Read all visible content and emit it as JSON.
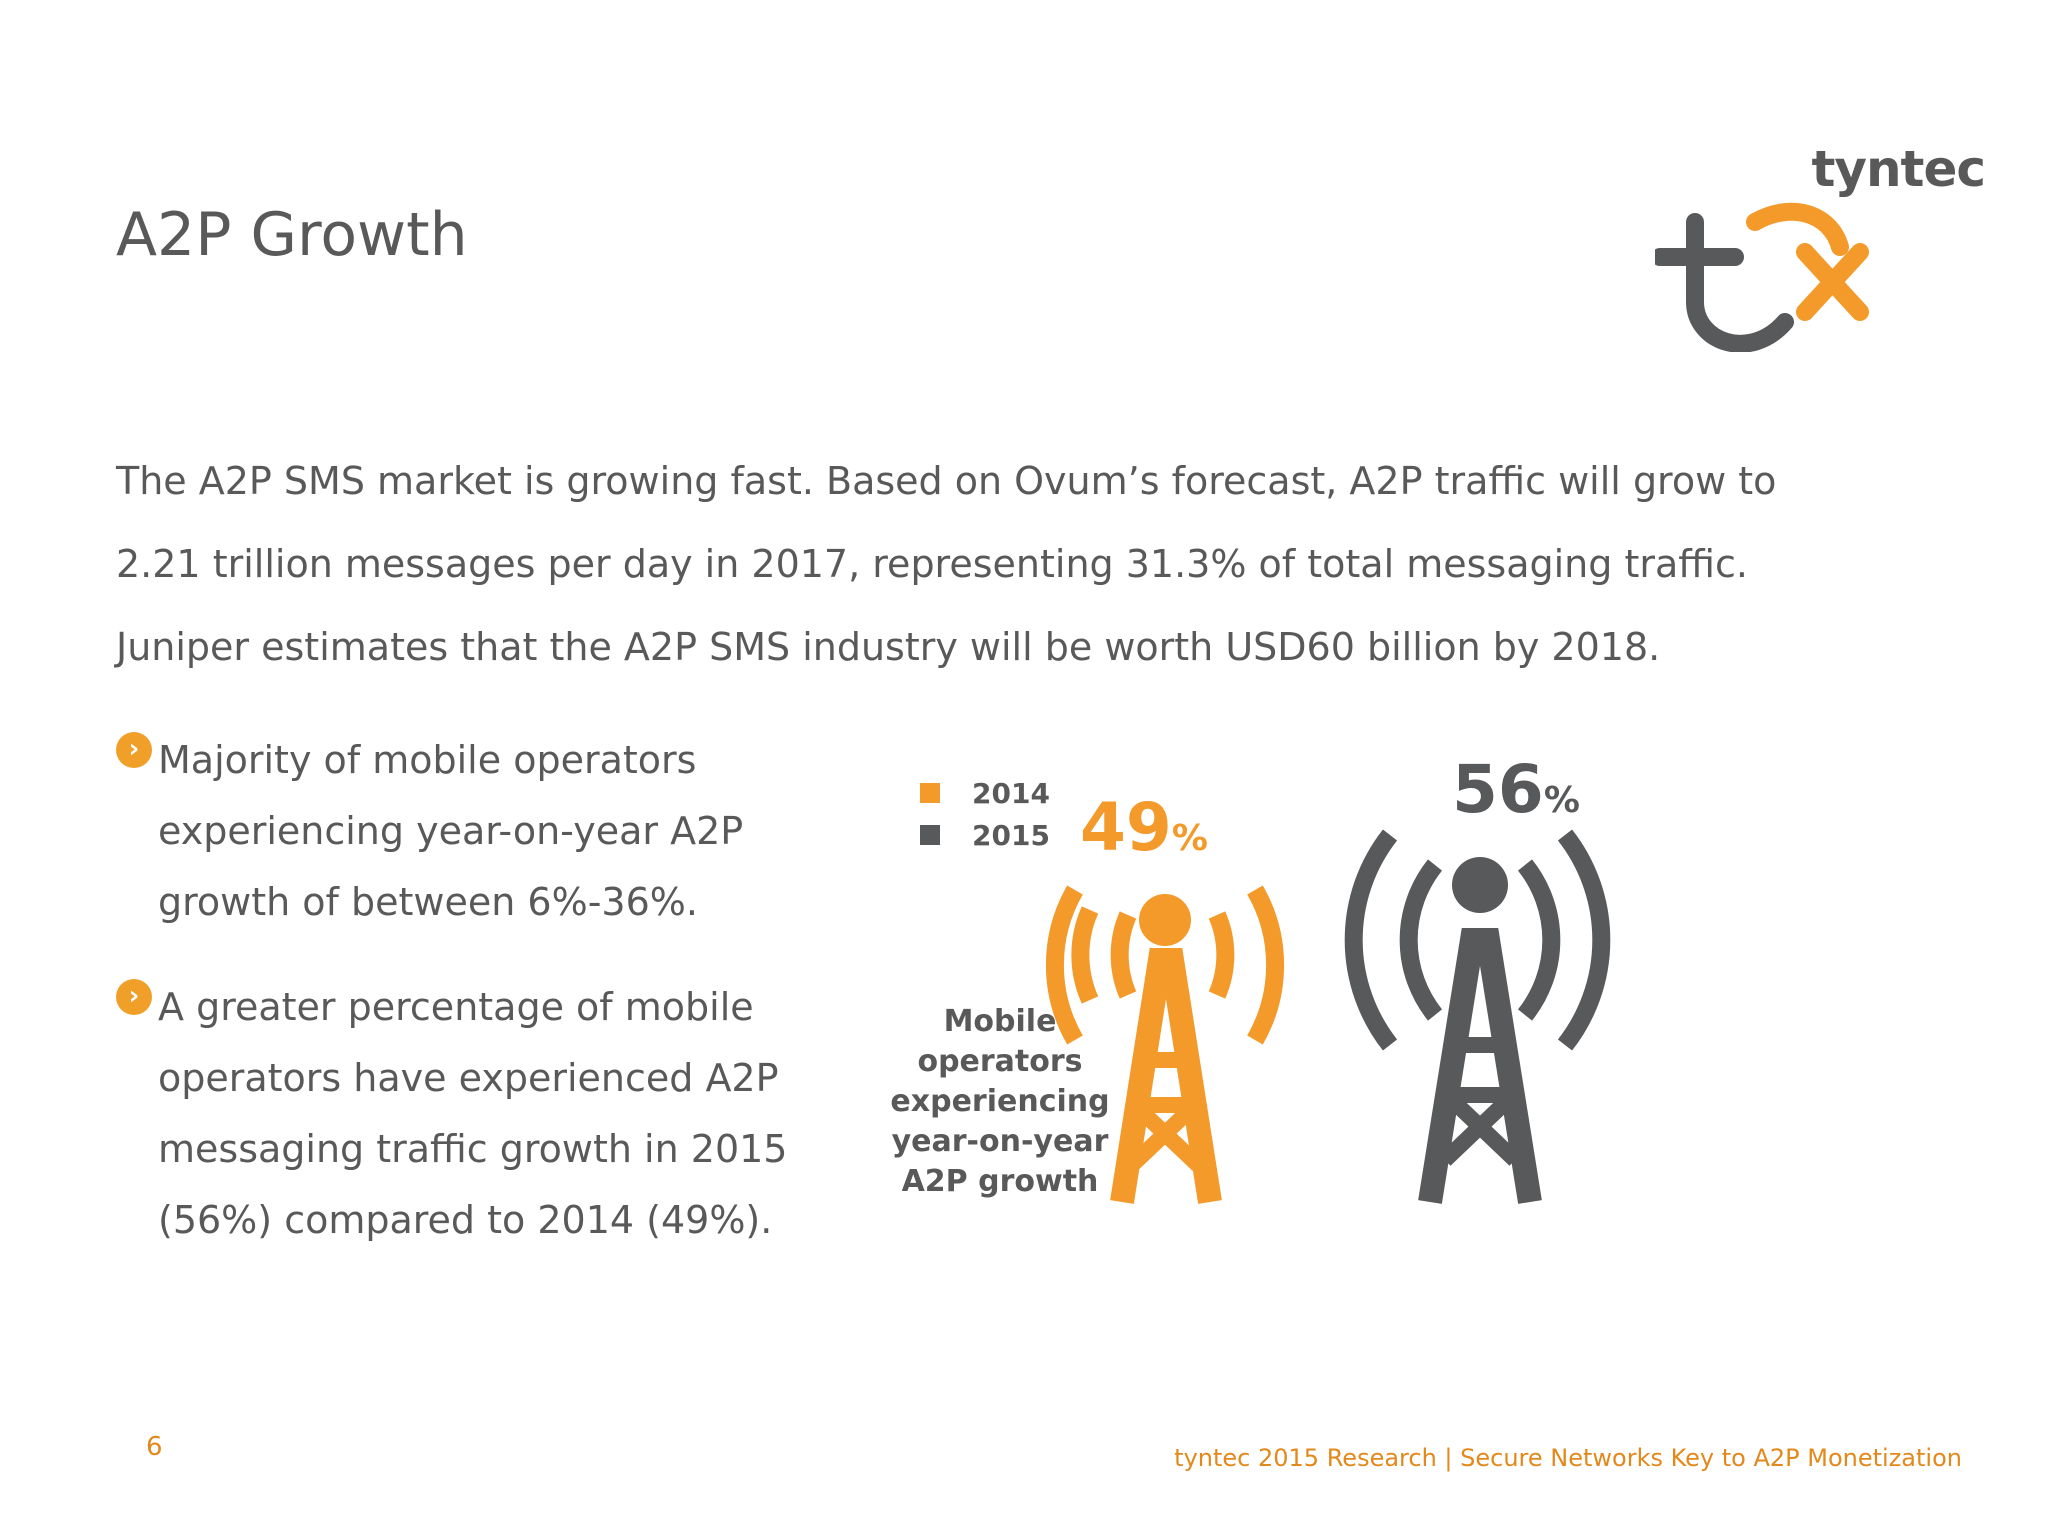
{
  "slide": {
    "title": "A2P Growth",
    "intro_lines": [
      "The A2P SMS market is growing fast. Based on Ovum’s forecast, A2P traffic will grow to",
      "2.21 trillion messages per day in 2017, representing 31.3% of total messaging traffic.",
      "Juniper estimates that the A2P SMS industry will be worth USD60 billion by 2018."
    ],
    "bullets": [
      "Majority of mobile operators experiencing year-on-year A2P growth of between 6%-36%.",
      "A greater percentage of mobile operators have experienced A2P messaging traffic growth in 2015 (56%) compared to 2014 (49%)."
    ],
    "bullet_icon": "chevron-right-circle-icon"
  },
  "logo": {
    "wordmark": "tyntec",
    "icon": "tyntec-tx-logo-icon",
    "colors": {
      "gray": "#58595b",
      "orange": "#f39a2b"
    }
  },
  "infographic": {
    "legend": [
      {
        "label": "2014",
        "color": "#f39a2b"
      },
      {
        "label": "2015",
        "color": "#58595b"
      }
    ],
    "caption": [
      "Mobile",
      "operators",
      "experiencing",
      "year-on-year",
      "A2P growth"
    ],
    "towers": [
      {
        "year": "2014",
        "value": "49",
        "unit": "%",
        "color": "#f39a2b",
        "icon": "radio-tower-icon"
      },
      {
        "year": "2015",
        "value": "56",
        "unit": "%",
        "color": "#58595b",
        "icon": "radio-tower-icon"
      }
    ]
  },
  "footer": {
    "page_number": "6",
    "text": "tyntec 2015 Research | Secure Networks Key to A2P Monetization"
  }
}
